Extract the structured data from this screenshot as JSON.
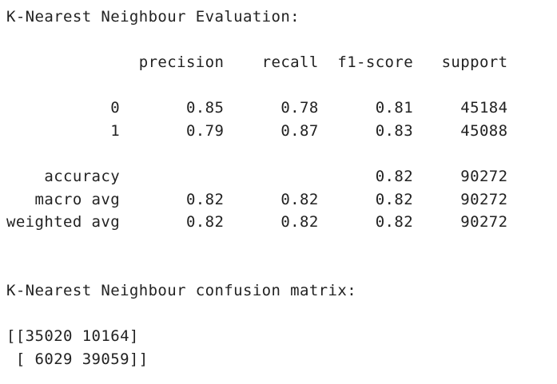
{
  "output": {
    "lines": [
      "K-Nearest Neighbour Evaluation:",
      "",
      "              precision    recall  f1-score   support",
      "",
      "           0       0.85      0.78      0.81     45184",
      "           1       0.79      0.87      0.83     45088",
      "",
      "    accuracy                           0.82     90272",
      "   macro avg       0.82      0.82      0.82     90272",
      "weighted avg       0.82      0.82      0.82     90272",
      "",
      "",
      "K-Nearest Neighbour confusion matrix:",
      "",
      "[[35020 10164]",
      " [ 6029 39059]]"
    ]
  }
}
